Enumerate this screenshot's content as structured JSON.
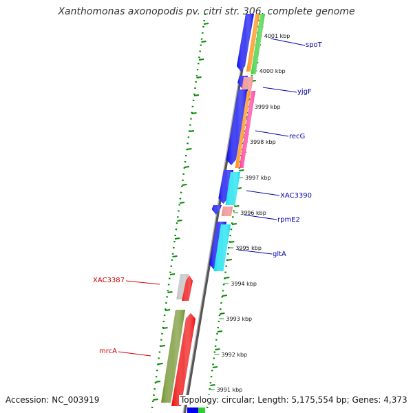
{
  "title": "Xanthomonas axonopodis pv. citri str. 306, complete genome",
  "footer": {
    "accession": "Accession: NC_003919",
    "topology": "Topology: circular; Length: 5,175,554 bp; Genes: 4,373"
  },
  "axis": {
    "unit": "kbp",
    "ticks": [
      "4001 kbp",
      "4000 kbp",
      "3999 kbp",
      "3998 kbp",
      "3997 kbp",
      "3996 kbp",
      "3995 kbp",
      "3994 kbp",
      "3993 kbp",
      "3992 kbp",
      "3991 kbp"
    ]
  },
  "colors": {
    "forward_label": "#0000aa",
    "reverse_label": "#cc0000",
    "cds_forward": "#0000ee",
    "cds_reverse": "#ee0000",
    "cog_orange": "#ff8800",
    "cog_green": "#33cc33",
    "cog_pink": "#ff3399",
    "cog_salmon": "#f08080",
    "cog_cyan": "#00ddee",
    "cog_olive": "#6b8e23",
    "cog_grey": "#bbbbbb",
    "dotted_ring": "#008800",
    "backbone": "#888888"
  },
  "genes": [
    {
      "name": "spoT",
      "strand": "forward",
      "label_color": "#0000aa"
    },
    {
      "name": "yjgF",
      "strand": "forward",
      "label_color": "#0000aa"
    },
    {
      "name": "recG",
      "strand": "forward",
      "label_color": "#0000aa"
    },
    {
      "name": "XAC3390",
      "strand": "forward",
      "label_color": "#0000aa"
    },
    {
      "name": "rpmE2",
      "strand": "forward",
      "label_color": "#0000aa"
    },
    {
      "name": "gltA",
      "strand": "forward",
      "label_color": "#0000aa"
    },
    {
      "name": "XAC3387",
      "strand": "reverse",
      "label_color": "#cc0000"
    },
    {
      "name": "mrcA",
      "strand": "reverse",
      "label_color": "#cc0000"
    }
  ]
}
